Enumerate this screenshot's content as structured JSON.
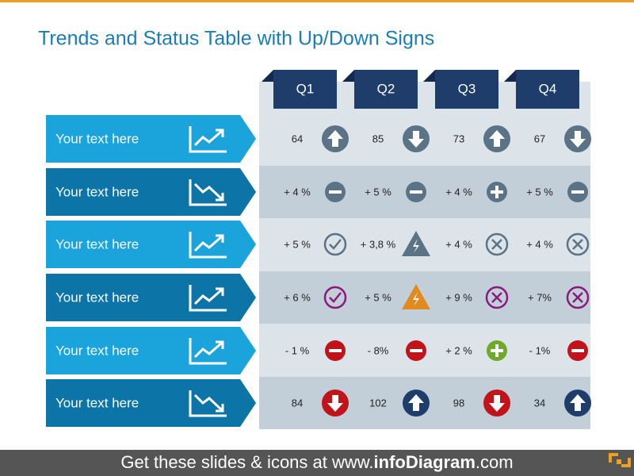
{
  "title": "Trends and Status Table with Up/Down Signs",
  "table": {
    "columns": [
      "Q1",
      "Q2",
      "Q3",
      "Q4"
    ],
    "rows": [
      {
        "label": "Your text here",
        "cells": [
          64,
          85,
          73,
          67
        ]
      },
      {
        "label": "Your text here",
        "cells": [
          "+ 4 %",
          "+ 5 %",
          "+ 4 %",
          "+ 5 %"
        ]
      },
      {
        "label": "Your text here",
        "cells": [
          "+ 5 %",
          "+ 3,8 %",
          "+ 4 %",
          "+ 4 %"
        ]
      },
      {
        "label": "Your text here",
        "cells": [
          "+ 6 %",
          "+ 5 %",
          "+ 9 %",
          "+ 7%"
        ]
      },
      {
        "label": "Your text here",
        "cells": [
          "- 1 %",
          "- 8%",
          "+ 2 %",
          "- 1%"
        ]
      },
      {
        "label": "Your text here",
        "cells": [
          84,
          102,
          98,
          34
        ]
      }
    ]
  },
  "footer": {
    "parts": [
      "Get these slides & icons at www.",
      "infoDiagram",
      ".com"
    ]
  }
}
